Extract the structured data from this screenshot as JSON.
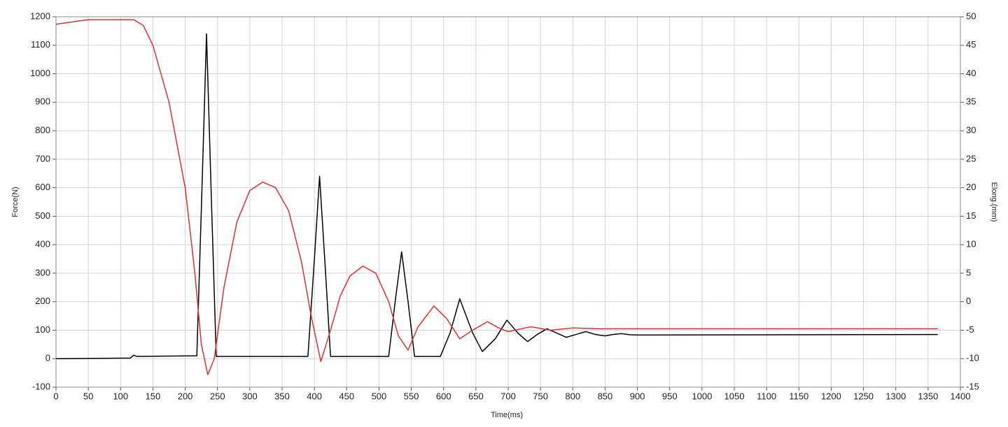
{
  "chart_data": {
    "type": "line",
    "x_label": "Time(ms)",
    "y_label": "Force(N)",
    "y2_label": "Elong.(mm)",
    "xlim": [
      0,
      1400
    ],
    "xticks": [
      0,
      50,
      100,
      150,
      200,
      250,
      300,
      350,
      400,
      450,
      500,
      550,
      600,
      650,
      700,
      750,
      800,
      850,
      900,
      950,
      1000,
      1050,
      1100,
      1150,
      1200,
      1250,
      1300,
      1350,
      1400
    ],
    "ylim": [
      -100,
      1200
    ],
    "yticks": [
      -100,
      0,
      100,
      200,
      300,
      400,
      500,
      600,
      700,
      800,
      900,
      1000,
      1100,
      1200
    ],
    "y2lim": [
      -15,
      50
    ],
    "y2ticks": [
      -15,
      -10,
      -5,
      0,
      5,
      10,
      15,
      20,
      25,
      30,
      35,
      40,
      45,
      50
    ],
    "grid": true,
    "series": [
      {
        "color": "#000000",
        "x": [
          0,
          115,
          120,
          125,
          218,
          226,
          233,
          240,
          248,
          390,
          400,
          408,
          416,
          425,
          515,
          525,
          535,
          545,
          555,
          595,
          610,
          625,
          645,
          660,
          680,
          698,
          715,
          730,
          745,
          760,
          775,
          790,
          805,
          820,
          835,
          850,
          862,
          875,
          888,
          900,
          1365
        ],
        "values": [
          0,
          2,
          12,
          8,
          10,
          600,
          1140,
          600,
          8,
          8,
          350,
          640,
          350,
          8,
          8,
          200,
          375,
          200,
          8,
          8,
          90,
          210,
          90,
          25,
          70,
          135,
          90,
          60,
          85,
          105,
          90,
          75,
          85,
          95,
          85,
          80,
          85,
          88,
          84,
          83,
          85
        ]
      },
      {
        "color": "#e03030",
        "axis": "y2",
        "x": [
          0,
          50,
          120,
          135,
          150,
          175,
          200,
          215,
          225,
          235,
          245,
          260,
          280,
          300,
          320,
          340,
          360,
          380,
          395,
          410,
          425,
          440,
          455,
          475,
          495,
          515,
          530,
          545,
          560,
          585,
          605,
          625,
          645,
          668,
          685,
          700,
          735,
          765,
          800,
          840,
          1365
        ],
        "values": [
          48.7,
          49.5,
          49.5,
          48.5,
          45,
          35,
          20,
          5,
          -7.5,
          -12.8,
          -10,
          2.5,
          14,
          19.5,
          21,
          20,
          16,
          7,
          -2.5,
          -10.5,
          -5,
          1,
          4.5,
          6.25,
          5,
          0,
          -6,
          -8.5,
          -4.5,
          -0.75,
          -3,
          -6.5,
          -5,
          -3.5,
          -4.6,
          -5.25,
          -4.4,
          -5,
          -4.6,
          -4.75,
          -4.75
        ]
      }
    ]
  }
}
